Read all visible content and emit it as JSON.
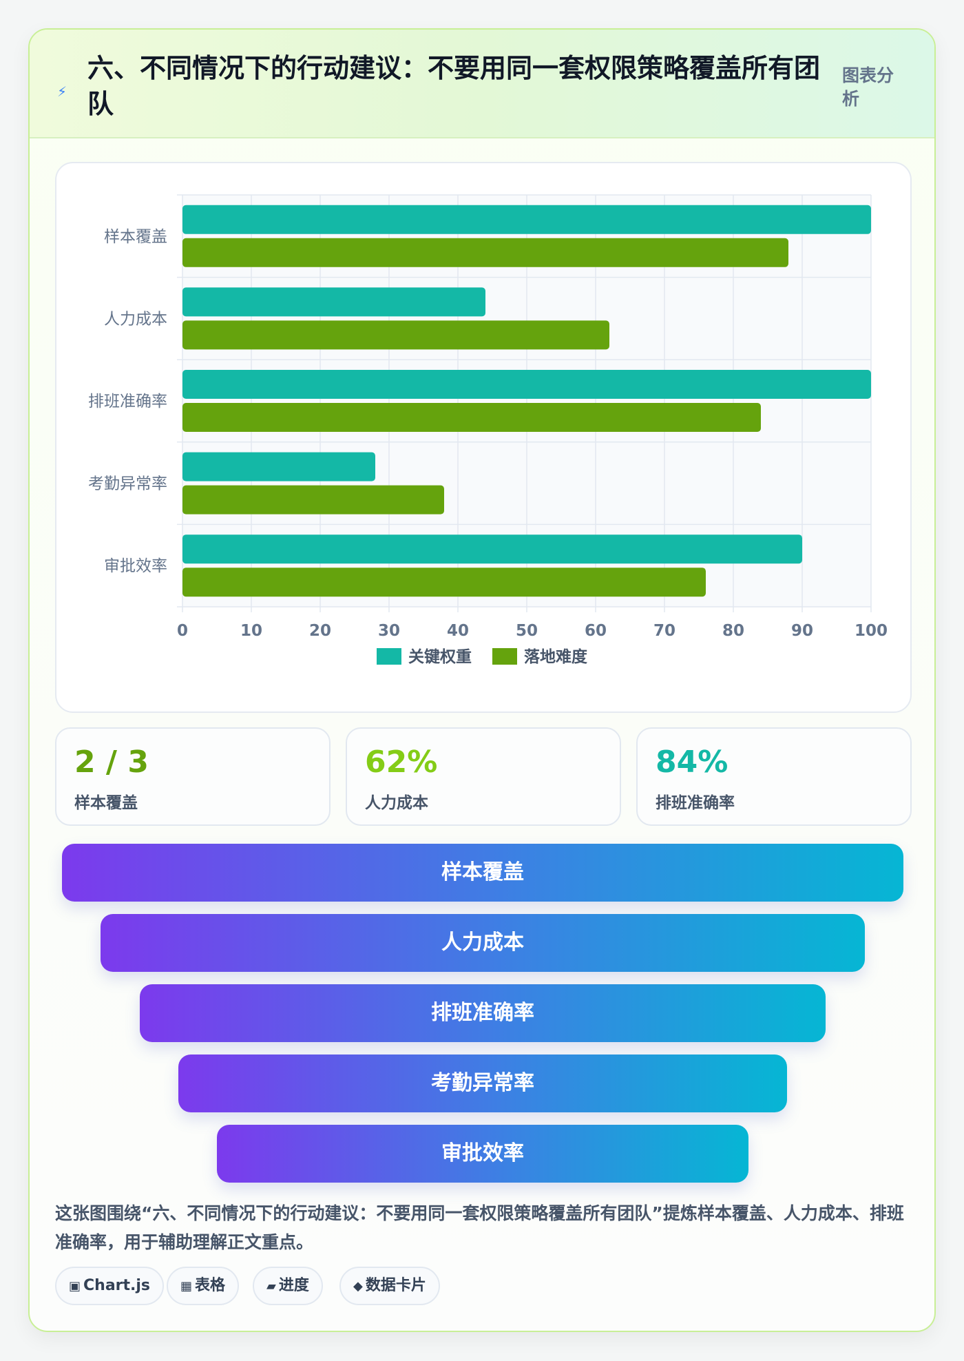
{
  "header": {
    "icon": "bolt-icon",
    "title": "六、不同情况下的行动建议：不要用同一套权限策略覆盖所有团队",
    "tag": "图表分析"
  },
  "chart_data": {
    "type": "bar",
    "orientation": "horizontal",
    "categories": [
      "样本覆盖",
      "人力成本",
      "排班准确率",
      "考勤异常率",
      "审批效率"
    ],
    "series": [
      {
        "name": "关键权重",
        "color": "#14b8a6",
        "values": [
          100,
          44,
          100,
          28,
          90
        ]
      },
      {
        "name": "落地难度",
        "color": "#65a30d",
        "values": [
          88,
          62,
          84,
          38,
          76
        ]
      }
    ],
    "xlim": [
      0,
      100
    ],
    "xticks": [
      0,
      10,
      20,
      30,
      40,
      50,
      60,
      70,
      80,
      90,
      100
    ],
    "grid": true,
    "legend_position": "bottom"
  },
  "stats": [
    {
      "value": "2 / 3",
      "label": "样本覆盖",
      "color": "#65a30d"
    },
    {
      "value": "62%",
      "label": "人力成本",
      "color": "#84cc16"
    },
    {
      "value": "84%",
      "label": "排班准确率",
      "color": "#14b8a6"
    }
  ],
  "funnel": [
    "样本覆盖",
    "人力成本",
    "排班准确率",
    "考勤异常率",
    "审批效率"
  ],
  "description": "这张图围绕“六、不同情况下的行动建议：不要用同一套权限策略覆盖所有团队”提炼样本覆盖、人力成本、排班准确率，用于辅助理解正文重点。",
  "pills": [
    {
      "icon": "▣",
      "label": "Chart.js"
    },
    {
      "icon": "▦",
      "label": "表格"
    },
    {
      "icon": "▰",
      "label": "进度"
    },
    {
      "icon": "◆",
      "label": "数据卡片"
    }
  ]
}
